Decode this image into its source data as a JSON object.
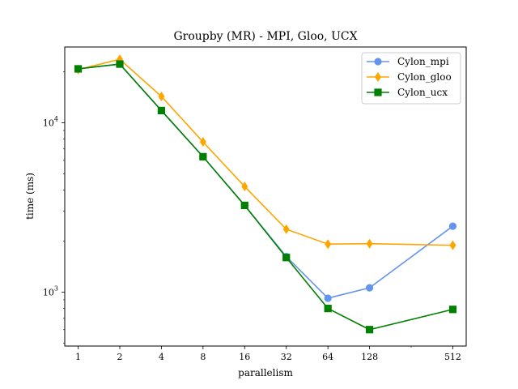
{
  "chart_data": {
    "type": "line",
    "title": "Groupby (MR) - MPI, Gloo, UCX",
    "xlabel": "parallelism",
    "ylabel": "time (ms)",
    "x_scale": "log2",
    "y_scale": "log10",
    "xlim": [
      0.8,
      640
    ],
    "ylim": [
      480,
      28000
    ],
    "x": [
      1,
      2,
      4,
      8,
      16,
      32,
      64,
      128,
      512
    ],
    "x_tick_labels": [
      "1",
      "2",
      "4",
      "8",
      "16",
      "32",
      "64",
      "128",
      "512"
    ],
    "y_ticks": [
      {
        "value": 1000,
        "base": "10",
        "exp": "3"
      },
      {
        "value": 10000,
        "base": "10",
        "exp": "4"
      }
    ],
    "legend_position": "top-right",
    "grid": false,
    "series": [
      {
        "name": "Cylon_mpi",
        "color": "#6495ED",
        "marker": "circle",
        "values": [
          20800,
          22200,
          11800,
          6300,
          3250,
          1620,
          920,
          1060,
          2450
        ]
      },
      {
        "name": "Cylon_gloo",
        "color": "#FFA500",
        "marker": "diamond",
        "values": [
          20600,
          23700,
          14300,
          7700,
          4200,
          2350,
          1920,
          1930,
          1890
        ]
      },
      {
        "name": "Cylon_ucx",
        "color": "#008000",
        "marker": "square",
        "values": [
          20800,
          22200,
          11800,
          6300,
          3250,
          1600,
          800,
          600,
          790
        ]
      }
    ]
  }
}
